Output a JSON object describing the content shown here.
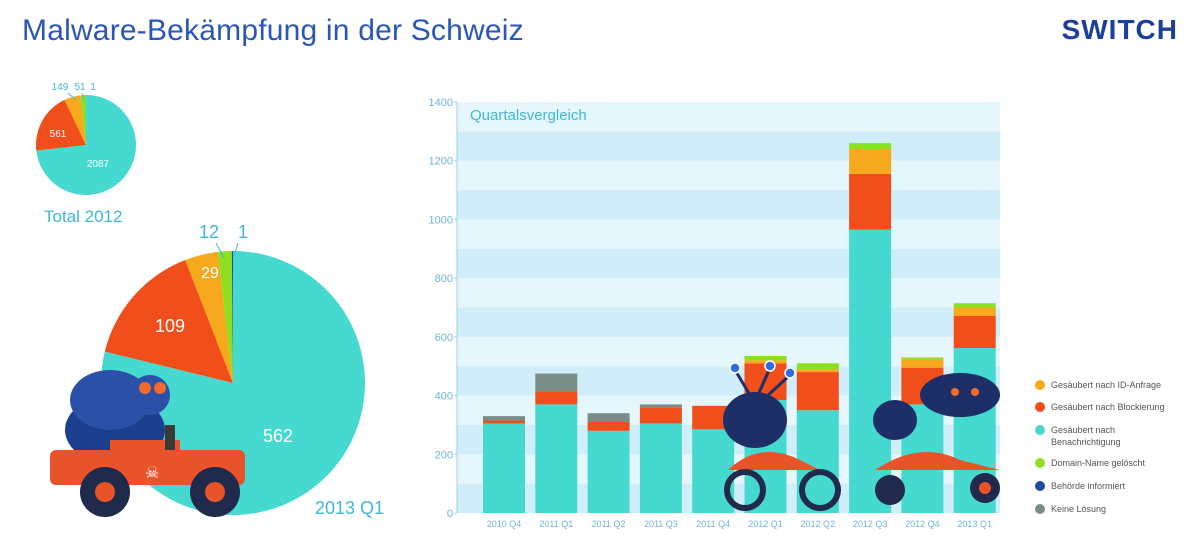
{
  "header": {
    "title": "Malware-Bekämpfung in der Schweiz",
    "logo_text": "SWITCH"
  },
  "colors": {
    "orange": "#f7a91d",
    "red": "#f04e1a",
    "turquoise": "#45d9cf",
    "green": "#8de021",
    "blue": "#1f4aa8",
    "grey": "#7a8c86",
    "band_light": "#e6f6fd",
    "band_dark": "#cfeefa",
    "title_blue": "#2a56b8",
    "axis_text": "#6fb3d9"
  },
  "chart_data": [
    {
      "type": "pie",
      "title": "Total 2012",
      "slices": [
        {
          "label": "Gesäubert nach Benachrichtigung",
          "value": 2087,
          "display": "2087"
        },
        {
          "label": "Gesäubert nach Blockierung",
          "value": 561,
          "display": "561"
        },
        {
          "label": "Gesäubert nach ID-Anfrage",
          "value": 149,
          "display": "149"
        },
        {
          "label": "Domain-Name gelöscht",
          "value": 51,
          "display": "51"
        },
        {
          "label": "Behörde informiert",
          "value": 1,
          "display": "1"
        }
      ]
    },
    {
      "type": "pie",
      "title": "2013 Q1",
      "slices": [
        {
          "label": "Gesäubert nach Benachrichtigung",
          "value": 562,
          "display": "562"
        },
        {
          "label": "Gesäubert nach Blockierung",
          "value": 109,
          "display": "109"
        },
        {
          "label": "Gesäubert nach ID-Anfrage",
          "value": 29,
          "display": "29"
        },
        {
          "label": "Domain-Name gelöscht",
          "value": 12,
          "display": "12"
        },
        {
          "label": "Behörde informiert",
          "value": 1,
          "display": "1"
        }
      ]
    },
    {
      "type": "bar",
      "stacked": true,
      "title": "Quartalsvergleich",
      "xlabel": "",
      "ylabel": "",
      "ylim": [
        0,
        1400
      ],
      "yticks": [
        0,
        200,
        400,
        600,
        800,
        1000,
        1200,
        1400
      ],
      "categories": [
        "2010 Q4",
        "2011 Q1",
        "2011 Q2",
        "2011 Q3",
        "2011 Q4",
        "2012 Q1",
        "2012 Q2",
        "2012 Q3",
        "2012 Q4",
        "2013 Q1"
      ],
      "series": [
        {
          "name": "Gesäubert nach Benachrichtigung",
          "values": [
            305,
            370,
            280,
            305,
            285,
            385,
            350,
            965,
            370,
            562
          ]
        },
        {
          "name": "Gesäubert nach Blockierung",
          "values": [
            10,
            45,
            30,
            55,
            80,
            125,
            130,
            190,
            125,
            109
          ]
        },
        {
          "name": "Gesäubert nach ID-Anfrage",
          "values": [
            0,
            0,
            0,
            0,
            0,
            10,
            10,
            85,
            30,
            29
          ]
        },
        {
          "name": "Domain-Name gelöscht",
          "values": [
            0,
            0,
            0,
            0,
            0,
            15,
            20,
            20,
            5,
            12
          ]
        },
        {
          "name": "Behörde informiert",
          "values": [
            0,
            0,
            0,
            0,
            0,
            0,
            0,
            0,
            0,
            1
          ]
        },
        {
          "name": "Keine Lösung",
          "values": [
            15,
            60,
            30,
            10,
            0,
            0,
            0,
            0,
            0,
            0
          ]
        }
      ],
      "legend_position": "right",
      "grid": "horizontal bands"
    }
  ],
  "legend": [
    {
      "label": "Gesäubert nach ID-Anfrage",
      "color": "#f7a91d"
    },
    {
      "label": "Gesäubert nach Blockierung",
      "color": "#f04e1a"
    },
    {
      "label": "Gesäubert nach Benachrichtigung",
      "color": "#45d9cf"
    },
    {
      "label": "Domain-Name gelöscht",
      "color": "#8de021"
    },
    {
      "label": "Behörde informiert",
      "color": "#1f4aa8"
    },
    {
      "label": "Keine Lösung",
      "color": "#7a8c86"
    }
  ]
}
